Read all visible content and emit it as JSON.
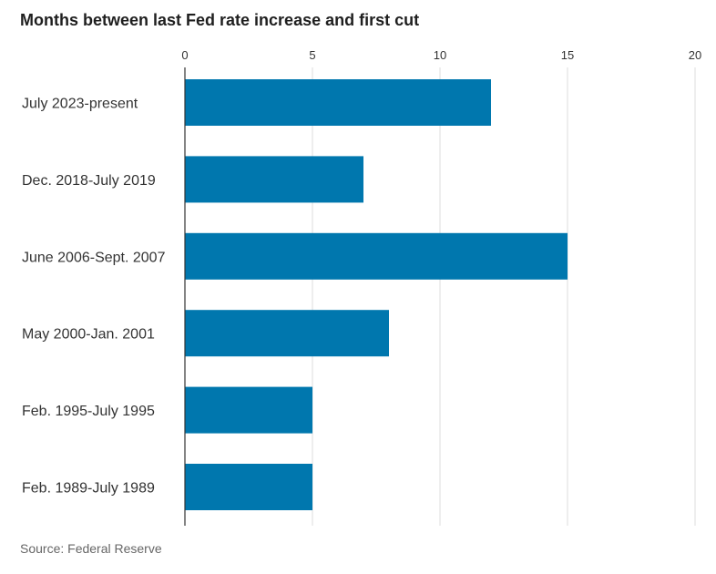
{
  "title": "Months between last Fed rate increase and first cut",
  "source": "Source: Federal Reserve",
  "colors": {
    "bar": "#0077ae",
    "grid": "#dddddd",
    "axis": "#333333",
    "text": "#333333"
  },
  "chart_data": {
    "type": "bar",
    "orientation": "horizontal",
    "title": "Months between last Fed rate increase and first cut",
    "categories": [
      "July 2023-present",
      "Dec. 2018-July 2019",
      "June 2006-Sept. 2007",
      "May 2000-Jan. 2001",
      "Feb. 1995-July 1995",
      "Feb. 1989-July 1989"
    ],
    "values": [
      12,
      7,
      15,
      8,
      5,
      5
    ],
    "xlim": [
      0,
      20
    ],
    "xticks": [
      0,
      5,
      10,
      15,
      20
    ],
    "grid": true,
    "legend": "none"
  }
}
